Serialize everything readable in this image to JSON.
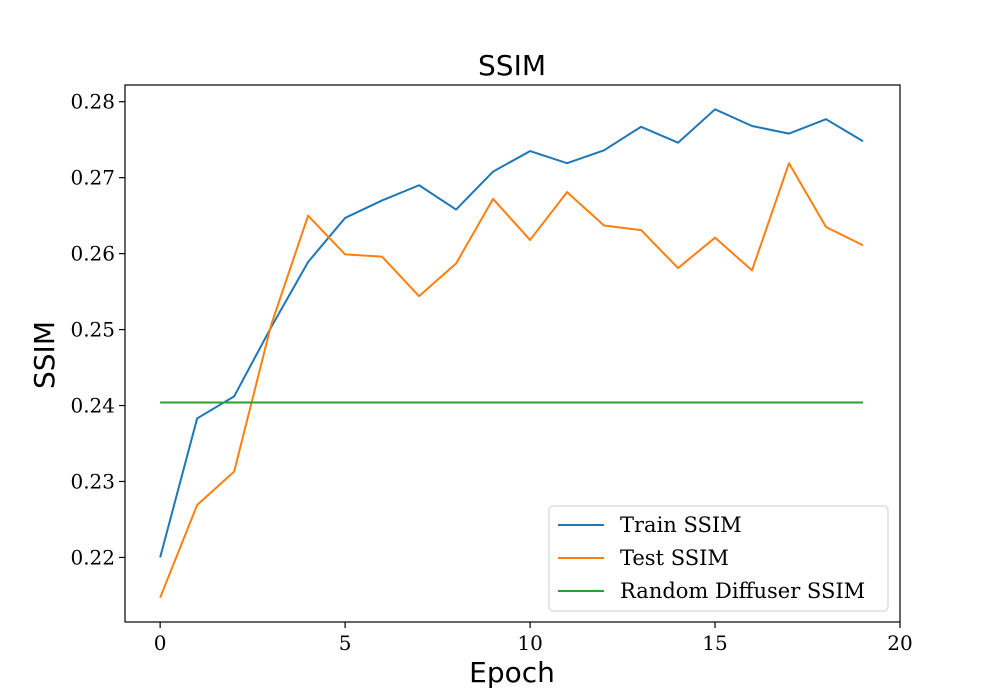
{
  "chart_data": {
    "type": "line",
    "title": "SSIM",
    "xlabel": "Epoch",
    "ylabel": "SSIM",
    "xlim": [
      -0.95,
      20
    ],
    "ylim": [
      0.2115,
      0.2822
    ],
    "xticks": [
      0,
      5,
      10,
      15,
      20
    ],
    "yticks": [
      0.22,
      0.23,
      0.24,
      0.25,
      0.26,
      0.27,
      0.28
    ],
    "ytick_labels": [
      "0.22",
      "0.23",
      "0.24",
      "0.25",
      "0.26",
      "0.27",
      "0.28"
    ],
    "grid": false,
    "legend_position": "lower-right",
    "x": [
      0,
      1,
      2,
      3,
      4,
      5,
      6,
      7,
      8,
      9,
      10,
      11,
      12,
      13,
      14,
      15,
      16,
      17,
      18,
      19
    ],
    "series": [
      {
        "name": "Train SSIM",
        "color": "#1f77b4",
        "values": [
          0.22,
          0.2383,
          0.2412,
          0.2503,
          0.2589,
          0.2647,
          0.267,
          0.269,
          0.2658,
          0.2708,
          0.2735,
          0.2719,
          0.2736,
          0.2767,
          0.2746,
          0.279,
          0.2768,
          0.2758,
          0.2777,
          0.2748
        ]
      },
      {
        "name": "Test SSIM",
        "color": "#ff7f0e",
        "values": [
          0.2147,
          0.2269,
          0.2313,
          0.2506,
          0.265,
          0.2599,
          0.2596,
          0.2544,
          0.2587,
          0.2672,
          0.2618,
          0.2681,
          0.2637,
          0.2631,
          0.2581,
          0.2621,
          0.2578,
          0.2719,
          0.2635,
          0.2611
        ]
      },
      {
        "name": "Random Diffuser SSIM",
        "color": "#2ca02c",
        "values": [
          0.2404,
          0.2404,
          0.2404,
          0.2404,
          0.2404,
          0.2404,
          0.2404,
          0.2404,
          0.2404,
          0.2404,
          0.2404,
          0.2404,
          0.2404,
          0.2404,
          0.2404,
          0.2404,
          0.2404,
          0.2404,
          0.2404,
          0.2404
        ]
      }
    ]
  }
}
